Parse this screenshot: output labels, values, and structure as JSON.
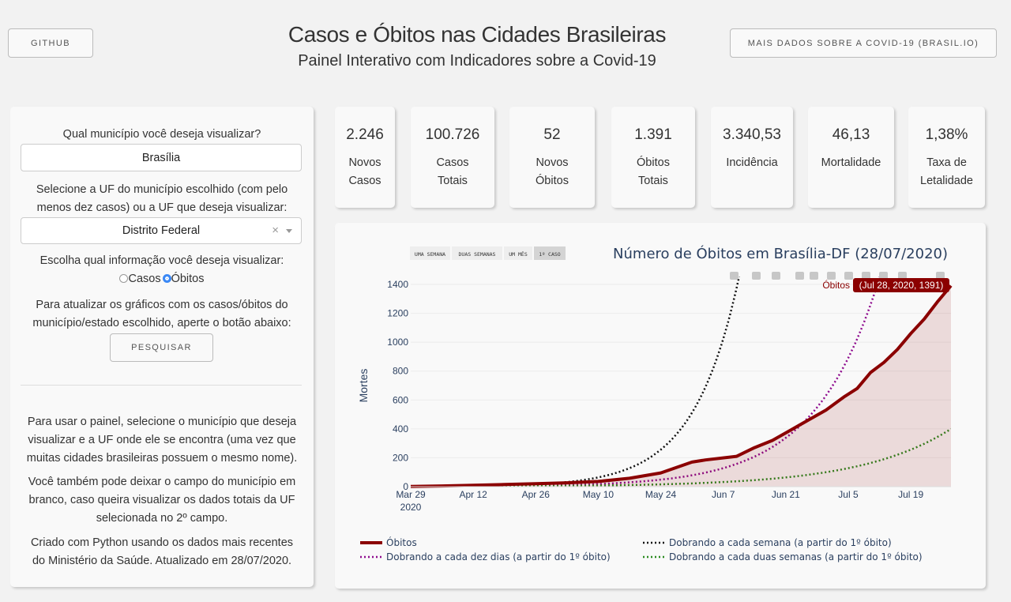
{
  "header": {
    "title": "Casos e Óbitos nas Cidades Brasileiras",
    "subtitle": "Painel Interativo com Indicadores sobre a Covid-19",
    "github_label": "GITHUB",
    "more_label": "MAIS DADOS SOBRE A COVID-19 (BRASIL.IO)"
  },
  "left_panel": {
    "city_question": "Qual município você deseja visualizar?",
    "city_value": "Brasília",
    "uf_question_1": "Selecione a UF do município escolhido (com pelo",
    "uf_question_2": "menos dez casos) ou a UF que deseja visualizar:",
    "uf_value": "Distrito Federal",
    "uf_clear": "×",
    "info_question": "Escolha qual informação você deseja visualizar:",
    "radio_cases": "Casos",
    "radio_deaths": "Óbitos",
    "update_1": "Para atualizar os gráficos com os casos/óbitos do",
    "update_2": "município/estado escolhido, aperte o botão abaixo:",
    "search_label": "PESQUISAR",
    "help_1": "Para usar o painel, selecione o município que deseja",
    "help_2": "visualizar e a UF onde ele se encontra (uma vez que",
    "help_3": "muitas cidades brasileiras possuem o mesmo nome).",
    "help_4": "Você também pode deixar o campo do município em",
    "help_5": "branco, caso queira visualizar os dados totais da UF",
    "help_6": "selecionada no 2º campo.",
    "help_7": "Criado com Python usando os dados mais recentes",
    "help_8": "do Ministério da Saúde. Atualizado em 28/07/2020."
  },
  "kpis": [
    {
      "value": "2.246",
      "l1": "Novos",
      "l2": "Casos"
    },
    {
      "value": "100.726",
      "l1": "Casos",
      "l2": "Totais"
    },
    {
      "value": "52",
      "l1": "Novos",
      "l2": "Óbitos"
    },
    {
      "value": "1.391",
      "l1": "Óbitos",
      "l2": "Totais"
    },
    {
      "value": "3.340,53",
      "l1": "Incidência",
      "l2": ""
    },
    {
      "value": "46,13",
      "l1": "Mortalidade",
      "l2": ""
    },
    {
      "value": "1,38%",
      "l1": "Taxa de",
      "l2": "Letalidade"
    }
  ],
  "chart_data": {
    "type": "line",
    "title": "Número de Óbitos em Brasília-DF (28/07/2020)",
    "ylabel": "Mortes",
    "xlabel": "",
    "ylim": [
      0,
      1400
    ],
    "yticks": [
      0,
      200,
      400,
      600,
      800,
      1000,
      1200,
      1400
    ],
    "xticks": [
      "Mar 29",
      "Apr 12",
      "Apr 26",
      "May 10",
      "May 24",
      "Jun 7",
      "Jun 21",
      "Jul 5",
      "Jul 19"
    ],
    "xtick_year": "2020",
    "x_range": [
      "2020-03-29",
      "2020-07-28"
    ],
    "range_buttons": [
      "UMA SEMANA",
      "DUAS SEMANAS",
      "UM MÊS",
      "1º CASO"
    ],
    "hover_label": {
      "series": "Óbitos",
      "text": "(Jul 28, 2020, 1391)"
    },
    "accent_color": "#8b0000",
    "series": [
      {
        "name": "Óbitos",
        "color": "#8b0000",
        "style": "solid",
        "fill": true,
        "points": [
          [
            "2020-03-29",
            1
          ],
          [
            "2020-04-05",
            5
          ],
          [
            "2020-04-12",
            10
          ],
          [
            "2020-04-19",
            15
          ],
          [
            "2020-04-26",
            20
          ],
          [
            "2020-05-03",
            27
          ],
          [
            "2020-05-10",
            36
          ],
          [
            "2020-05-17",
            58
          ],
          [
            "2020-05-24",
            95
          ],
          [
            "2020-05-31",
            170
          ],
          [
            "2020-06-03",
            185
          ],
          [
            "2020-06-10",
            210
          ],
          [
            "2020-06-14",
            270
          ],
          [
            "2020-06-18",
            320
          ],
          [
            "2020-06-22",
            390
          ],
          [
            "2020-06-26",
            460
          ],
          [
            "2020-06-30",
            530
          ],
          [
            "2020-07-04",
            620
          ],
          [
            "2020-07-07",
            680
          ],
          [
            "2020-07-10",
            790
          ],
          [
            "2020-07-13",
            860
          ],
          [
            "2020-07-16",
            950
          ],
          [
            "2020-07-19",
            1060
          ],
          [
            "2020-07-22",
            1160
          ],
          [
            "2020-07-25",
            1280
          ],
          [
            "2020-07-28",
            1391
          ]
        ]
      },
      {
        "name": "Dobrando a cada semana (a partir do 1º óbito)",
        "color": "#111111",
        "style": "dotted",
        "doubling_days": 7
      },
      {
        "name": "Dobrando a cada dez dias (a partir do 1º óbito)",
        "color": "#8e0b8e",
        "style": "dotted",
        "doubling_days": 10
      },
      {
        "name": "Dobrando a cada duas semanas (a partir do 1º óbito)",
        "color": "#2a8a1f",
        "style": "dotted",
        "doubling_days": 14
      }
    ],
    "legend": [
      "Óbitos",
      "Dobrando a cada semana (a partir do 1º óbito)",
      "Dobrando a cada dez dias (a partir do 1º óbito)",
      "Dobrando a cada duas semanas (a partir do 1º óbito)"
    ],
    "legend_position": "bottom"
  },
  "modebar_icons": [
    "camera-icon",
    "zoom-icon",
    "pan-icon",
    "zoom-in-icon",
    "zoom-out-icon",
    "autoscale-icon",
    "reset-axes-icon",
    "spike-lines-icon",
    "hover-closest-icon",
    "hover-compare-icon",
    "plotly-logo-icon"
  ]
}
